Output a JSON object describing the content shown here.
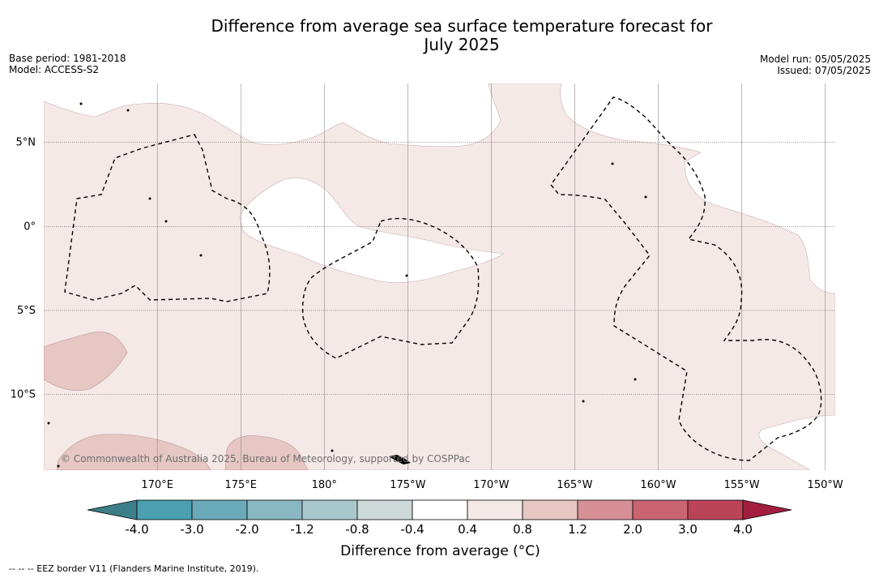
{
  "header": {
    "title_line1": "Difference from average sea surface temperature forecast for",
    "title_line2": "July 2025",
    "base_period": "Base period: 1981-2018",
    "model": "Model: ACCESS-S2",
    "model_run": "Model run: 05/05/2025",
    "issued": "Issued: 07/05/2025"
  },
  "map": {
    "extent": {
      "lon_min": 163.2,
      "lon_max": 210.6,
      "lat_min": -14.5,
      "lat_max": 8.5
    },
    "lon_ticks": [
      {
        "lon": 170,
        "label": "170°E"
      },
      {
        "lon": 175,
        "label": "175°E"
      },
      {
        "lon": 180,
        "label": "180°"
      },
      {
        "lon": 185,
        "label": "175°W"
      },
      {
        "lon": 190,
        "label": "170°W"
      },
      {
        "lon": 195,
        "label": "165°W"
      },
      {
        "lon": 200,
        "label": "160°W"
      },
      {
        "lon": 205,
        "label": "155°W"
      },
      {
        "lon": 210,
        "label": "150°W"
      }
    ],
    "lat_ticks": [
      {
        "lat": 5,
        "label": "5°N"
      },
      {
        "lat": 0,
        "label": "0°"
      },
      {
        "lat": -5,
        "label": "5°S"
      },
      {
        "lat": -10,
        "label": "10°S"
      }
    ],
    "copyright": "© Commonwealth of Australia 2025, Bureau of Meteorology, supported by COSPPac",
    "base_fill": "#f5e9e7",
    "neutral_fill": "#ffffff",
    "warm_fill": "#e6c7c3",
    "eez_border": "EEZ border V11"
  },
  "colorbar": {
    "tick_labels": [
      "-4.0",
      "-3.0",
      "-2.0",
      "-1.2",
      "-0.8",
      "-0.4",
      "0.4",
      "0.8",
      "1.2",
      "2.0",
      "3.0",
      "4.0"
    ],
    "colors": [
      "#3d7f88",
      "#4a9fb0",
      "#6aaab8",
      "#8ab8c2",
      "#a9c8cc",
      "#cdd8d8",
      "#ffffff",
      "#f5e9e7",
      "#e6c7c3",
      "#d68f95",
      "#c96570",
      "#bb4457",
      "#a31e3e"
    ],
    "label": "Difference from average (°C)"
  },
  "footnote": "--  --  -- EEZ border V11 (Flanders Marine Institute, 2019)."
}
